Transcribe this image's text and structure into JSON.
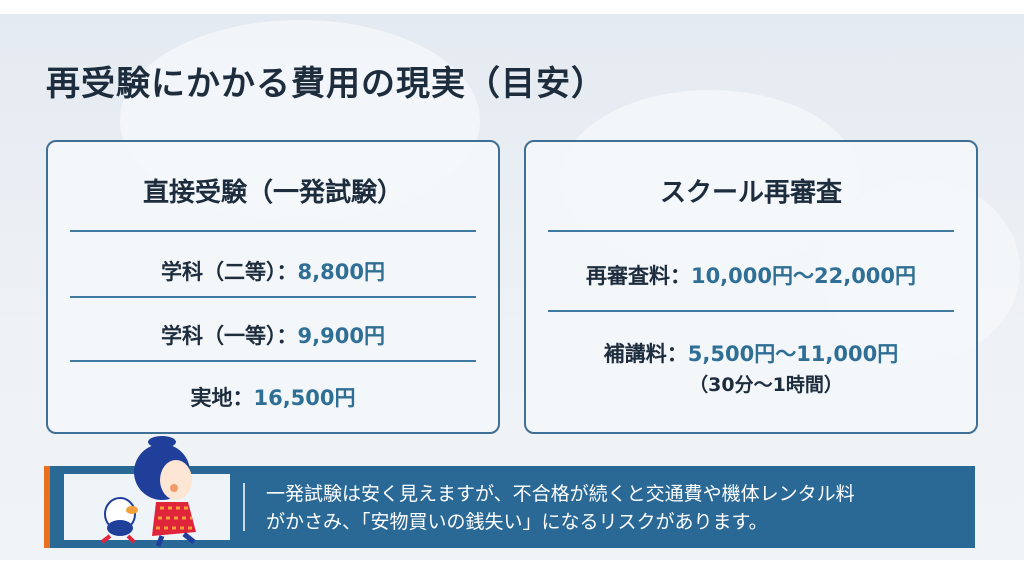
{
  "page": {
    "title": "再受験にかかる費用の現実（目安）"
  },
  "colors": {
    "text": "#1e2d3d",
    "value": "#2f6f95",
    "border": "#3f6f94",
    "banner": "#2a6896",
    "accent": "#e8701e"
  },
  "cards": [
    {
      "title": "直接受験（一発試験）",
      "rows": [
        {
          "label": "学科（二等）：",
          "value": "8,800円"
        },
        {
          "label": "学科（一等）：",
          "value": "9,900円"
        },
        {
          "label": "実地：",
          "value": "16,500円"
        }
      ]
    },
    {
      "title": "スクール再審査",
      "rows": [
        {
          "label": "再審査料：",
          "value": "10,000円〜22,000円"
        },
        {
          "label": "補講料：",
          "value": "5,500円〜11,000円",
          "note": "（30分〜1時間）"
        }
      ]
    }
  ],
  "banner": {
    "icon": "mascot-illustration",
    "line1": "一発試験は安く見えますが、不合格が続くと交通費や機体レンタル料",
    "line2": "がかさみ、「安物買いの銭失い」になるリスクがあります。"
  }
}
